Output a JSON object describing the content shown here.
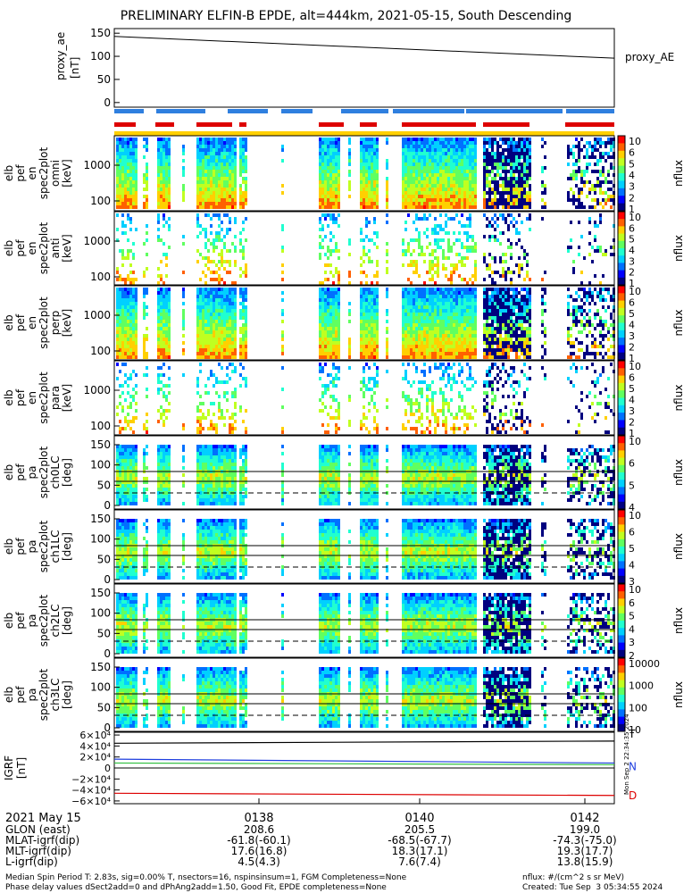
{
  "title": "PRELIMINARY ELFIN-B EPDE, alt=444km, 2021-05-15, South Descending",
  "colors": {
    "state_bar": "#2f7fdf",
    "science_bar": "#dd0000",
    "ok_bar": "#ffd000",
    "bfield_t": "#000000",
    "bfield_n": "#1f3fdf",
    "bfield_n2": "#2fbf3f",
    "bfield_d": "#dd0000"
  },
  "chart_data": [
    {
      "type": "line",
      "name": "proxy_ae",
      "ylabel_lines": [
        "proxy_ae",
        "[nT]"
      ],
      "series": [
        {
          "name": "proxy_AE",
          "x_start": 0,
          "x_end": 1,
          "y_start": 143,
          "y_end": 96
        }
      ],
      "ylim": [
        -10,
        160
      ],
      "yticks": [
        "150",
        "100",
        "50",
        "0"
      ],
      "ytick_values": [
        150,
        100,
        50,
        0
      ],
      "right_label": "proxy_AE"
    },
    {
      "type": "heatmap",
      "name": "energy-omni",
      "ylabel_lines": [
        "elb",
        "pef",
        "en",
        "spec2plot",
        "omni",
        "[keV]"
      ],
      "yticks": [
        "1000",
        "100"
      ],
      "colorbar_ticks": [
        "10",
        "6",
        "5",
        "4",
        "3",
        "2",
        "1"
      ],
      "colorbar_label": "nflux"
    },
    {
      "type": "heatmap",
      "name": "energy-anti",
      "ylabel_lines": [
        "elb",
        "pef",
        "en",
        "spec2plot",
        "anti",
        "[keV]"
      ],
      "yticks": [
        "1000",
        "100"
      ],
      "colorbar_ticks": [
        "10",
        "6",
        "5",
        "4",
        "3",
        "2",
        "1"
      ],
      "colorbar_label": "nflux"
    },
    {
      "type": "heatmap",
      "name": "energy-perp",
      "ylabel_lines": [
        "elb",
        "pef",
        "en",
        "spec2plot",
        "perp",
        "[keV]"
      ],
      "yticks": [
        "1000",
        "100"
      ],
      "colorbar_ticks": [
        "10",
        "6",
        "5",
        "4",
        "3",
        "2",
        "1"
      ],
      "colorbar_label": "nflux"
    },
    {
      "type": "heatmap",
      "name": "energy-para",
      "ylabel_lines": [
        "elb",
        "pef",
        "en",
        "spec2plot",
        "para",
        "[keV]"
      ],
      "yticks": [
        "1000",
        "100"
      ],
      "colorbar_ticks": [
        "10",
        "6",
        "5",
        "4",
        "3",
        "2",
        "1"
      ],
      "colorbar_label": "nflux"
    },
    {
      "type": "heatmap",
      "name": "pa-ch0",
      "ylabel_lines": [
        "elb",
        "pef",
        "pa",
        "spec2plot",
        "ch0LC",
        "[deg]"
      ],
      "yticks": [
        "150",
        "100",
        "50",
        "0"
      ],
      "colorbar_ticks": [
        "10",
        "6",
        "5",
        "4"
      ],
      "colorbar_label": "nflux"
    },
    {
      "type": "heatmap",
      "name": "pa-ch1",
      "ylabel_lines": [
        "elb",
        "pef",
        "pa",
        "spec2plot",
        "ch1LC",
        "[deg]"
      ],
      "yticks": [
        "150",
        "100",
        "50",
        "0"
      ],
      "colorbar_ticks": [
        "10",
        "6",
        "5",
        "4",
        "3"
      ],
      "colorbar_label": "nflux"
    },
    {
      "type": "heatmap",
      "name": "pa-ch2",
      "ylabel_lines": [
        "elb",
        "pef",
        "pa",
        "spec2plot",
        "ch2LC",
        "[deg]"
      ],
      "yticks": [
        "150",
        "100",
        "50",
        "0"
      ],
      "colorbar_ticks": [
        "10",
        "6",
        "5",
        "4",
        "3",
        "2"
      ],
      "colorbar_label": "nflux"
    },
    {
      "type": "heatmap",
      "name": "pa-ch3",
      "ylabel_lines": [
        "elb",
        "pef",
        "pa",
        "spec2plot",
        "ch3LC",
        "[deg]"
      ],
      "yticks": [
        "150",
        "100",
        "50",
        "0"
      ],
      "colorbar_ticks": [
        "10000",
        "1000",
        "100",
        "10"
      ],
      "colorbar_label": "nflux"
    },
    {
      "type": "line",
      "name": "igrf",
      "ylabel_lines": [
        "IGRF",
        "[nT]"
      ],
      "yticks": [
        "6×10⁴",
        "4×10⁴",
        "2×10⁴",
        "0",
        "−2×10⁴",
        "−4×10⁴",
        "−6×10⁴"
      ],
      "ytick_values": [
        60000,
        40000,
        20000,
        0,
        -20000,
        -40000,
        -60000
      ],
      "ylim": [
        -65000,
        65000
      ],
      "series": [
        {
          "name": "T",
          "y_start": 45000,
          "y_end": 49000,
          "color": "#000000"
        },
        {
          "name": "N",
          "y_start": 16000,
          "y_end": 9000,
          "color": "#1f3fdf"
        },
        {
          "name": "N2",
          "y_start": 9000,
          "y_end": 6000,
          "color": "#2fbf3f"
        },
        {
          "name": "D",
          "y_start": -46000,
          "y_end": -50000,
          "color": "#dd0000"
        }
      ],
      "labels": [
        "T",
        "N",
        "D"
      ],
      "side_note": "Mon Sep  2 22:34:35 2024"
    }
  ],
  "xaxis": {
    "date_label": "2021 May 15",
    "ticks": [
      "0138",
      "0140",
      "0142"
    ],
    "rows": [
      {
        "label": "GLON (east)",
        "values": [
          "208.6",
          "205.5",
          "199.0"
        ]
      },
      {
        "label": "MLAT-igrf(dip)",
        "values": [
          "-61.8(-60.1)",
          "-68.5(-67.7)",
          "-74.3(-75.0)"
        ]
      },
      {
        "label": "MLT-igrf(dip)",
        "values": [
          "17.6(16.8)",
          "18.3(17.1)",
          "19.3(17.7)"
        ]
      },
      {
        "label": "L-igrf(dip)",
        "values": [
          "4.5(4.3)",
          "7.6(7.4)",
          "13.8(15.9)"
        ]
      }
    ]
  },
  "footer": {
    "line1": "Median Spin Period T: 2.83s, sig=0.00% T, nsectors=16, nspinsinsum=1, FGM Completeness=None",
    "line2": "Phase delay values dSect2add=0 and dPhAng2add=1.50, Good Fit, EPDE completeness=None",
    "right1": "nflux: #/(cm^2 s sr MeV)",
    "right2": "Created: Tue Sep  3 05:34:55 2024"
  }
}
